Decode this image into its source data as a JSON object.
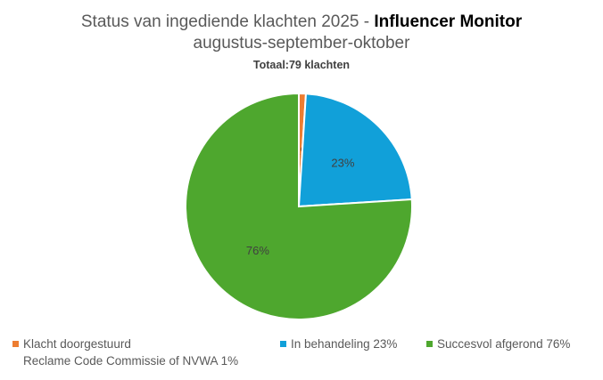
{
  "chart_data": {
    "type": "pie",
    "title_prefix": "Status van ingediende klachten 2025 - ",
    "title_bold": "Influencer Monitor",
    "title_line2": "augustus-september-oktober",
    "subtitle": "Totaal:79 klachten",
    "slices": [
      {
        "label": "Klacht doorgestuurd",
        "label_line2": "Reclame Code Commissie of NVWA 1%",
        "value": 1,
        "data_label": "1%",
        "color": "#ED7D31"
      },
      {
        "label": "In behandeling 23%",
        "value": 23,
        "data_label": "23%",
        "color": "#11A0D9"
      },
      {
        "label": "Succesvol afgerond 76%",
        "value": 76,
        "data_label": "76%",
        "color": "#4EA72E"
      }
    ],
    "legend_position": "bottom"
  }
}
